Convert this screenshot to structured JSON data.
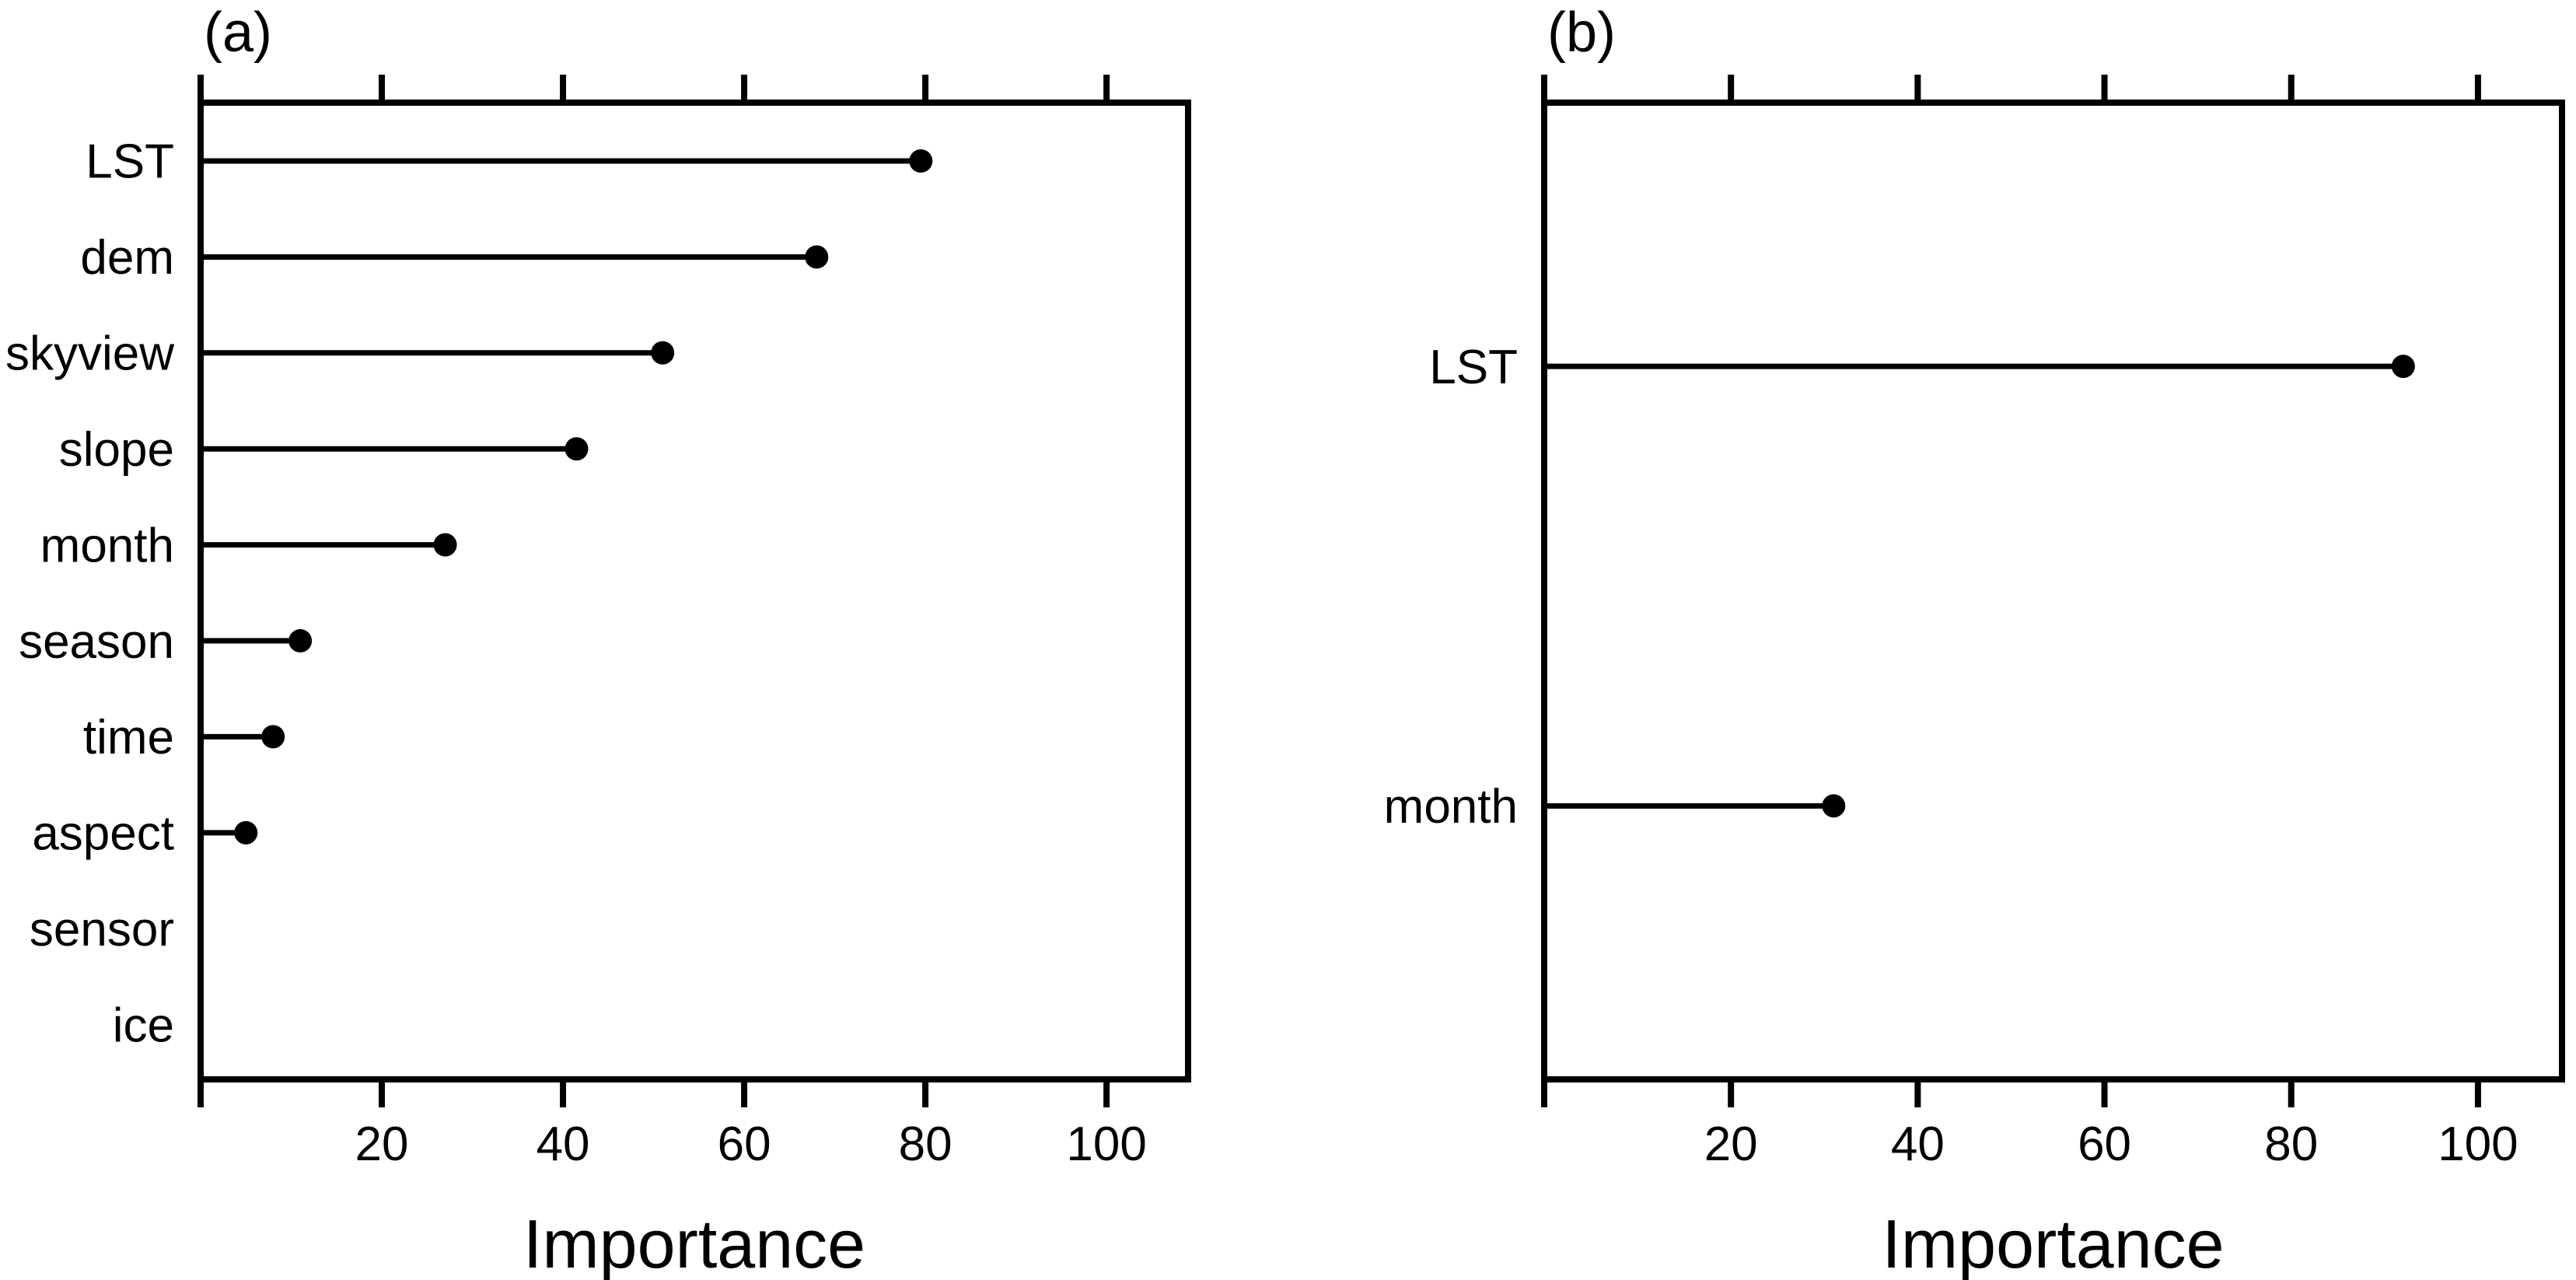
{
  "figure": {
    "background": "#ffffff",
    "foreground": "#000000"
  },
  "chart_data": [
    {
      "type": "scatter",
      "style": "horizontal-lollipop-dotchart",
      "panel_label": "(a)",
      "title": "",
      "xlabel": "Importance",
      "ylabel": "",
      "categories": [
        "LST",
        "dem",
        "skyview",
        "slope",
        "month",
        "season",
        "time",
        "aspect",
        "sensor",
        "ice"
      ],
      "values": [
        79.5,
        68,
        51,
        41.5,
        27,
        11,
        8,
        5,
        0,
        0
      ],
      "xticks": [
        20,
        40,
        60,
        80,
        100
      ],
      "xlim": [
        0,
        109
      ],
      "grid": false,
      "legend": false,
      "row_fractions": [
        0.0597,
        0.158,
        0.2562,
        0.3545,
        0.4527,
        0.551,
        0.6492,
        0.7475,
        0.8457,
        0.944
      ]
    },
    {
      "type": "scatter",
      "style": "horizontal-lollipop-dotchart",
      "panel_label": "(b)",
      "title": "",
      "xlabel": "Importance",
      "ylabel": "",
      "categories": [
        "LST",
        "month"
      ],
      "values": [
        92,
        31
      ],
      "xticks": [
        20,
        40,
        60,
        80,
        100
      ],
      "xlim": [
        0,
        109
      ],
      "grid": false,
      "legend": false,
      "row_fractions": [
        0.27,
        0.72
      ]
    }
  ]
}
